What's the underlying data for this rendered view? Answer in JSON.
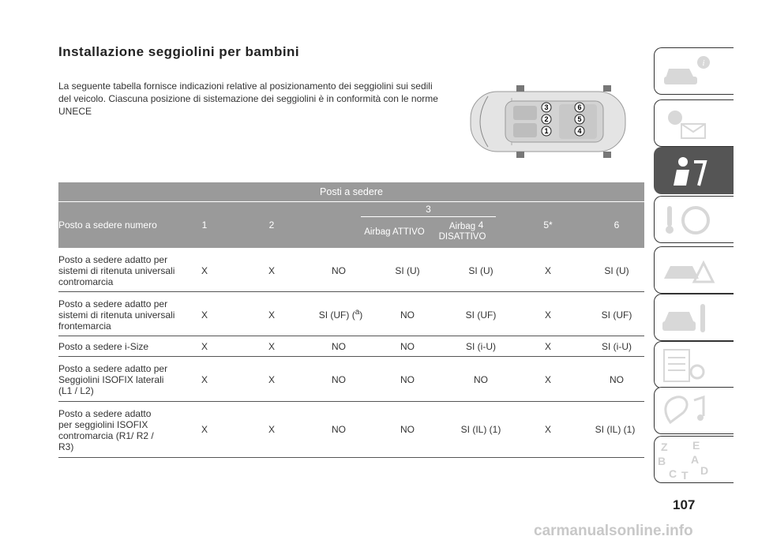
{
  "title": "Installazione seggiolini per bambini",
  "intro": "La seguente tabella fornisce indicazioni relative al posizionamento dei seggiolini sui sedili del veicolo. Ciascuna posizione di sistemazione dei seggiolini è in conformità con le norme UNECE",
  "seat_markers": [
    "1",
    "2",
    "3",
    "4",
    "5",
    "6"
  ],
  "table": {
    "group_header": "Posti a sedere",
    "row_header": "Posto a sedere numero",
    "col1": "1",
    "col2": "2",
    "col3": "3",
    "col3a": "Airbag ATTIVO",
    "col3b": "Airbag DISATTIVO",
    "col4": "4",
    "col5": "5*",
    "col6": "6",
    "rows": [
      {
        "label": "Posto a sedere adatto per sistemi di ritenuta universali contromarcia",
        "v": [
          "X",
          "X",
          "NO",
          "SI (U)",
          "SI (U)",
          "X",
          "SI (U)"
        ]
      },
      {
        "label": "Posto a sedere adatto per sistemi di ritenuta universali frontemarcia",
        "v": [
          "X",
          "X",
          "SI (UF) (",
          "NO",
          "SI (UF)",
          "X",
          "SI (UF)"
        ],
        "sup": "a",
        "close": ")"
      },
      {
        "label": "Posto a sedere i-Size",
        "v": [
          "X",
          "X",
          "NO",
          "NO",
          "SI (i-U)",
          "X",
          "SI (i-U)"
        ]
      },
      {
        "label": "Posto a sedere adatto per Seggiolini ISOFIX laterali (L1 / L2)",
        "v": [
          "X",
          "X",
          "NO",
          "NO",
          "NO",
          "X",
          "NO"
        ]
      },
      {
        "label": "Posto a sedere adatto per seggiolini ISOFIX contromarcia (R1/ R2 / R3)",
        "v": [
          "X",
          "X",
          "NO",
          "NO",
          "SI (IL) (1)",
          "X",
          "SI (IL) (1)"
        ]
      }
    ]
  },
  "sidebar_icons": [
    "car-info-icon",
    "warning-lights-icon",
    "seat-safety-icon",
    "steering-key-icon",
    "emergency-icon",
    "maintenance-icon",
    "specs-icon",
    "multimedia-icon",
    "index-icon"
  ],
  "sidebar_index_letters": [
    "Z",
    "E",
    "B",
    "A",
    "C",
    "T",
    "D"
  ],
  "page_number": "107",
  "watermark": "carmanualsonline.info"
}
